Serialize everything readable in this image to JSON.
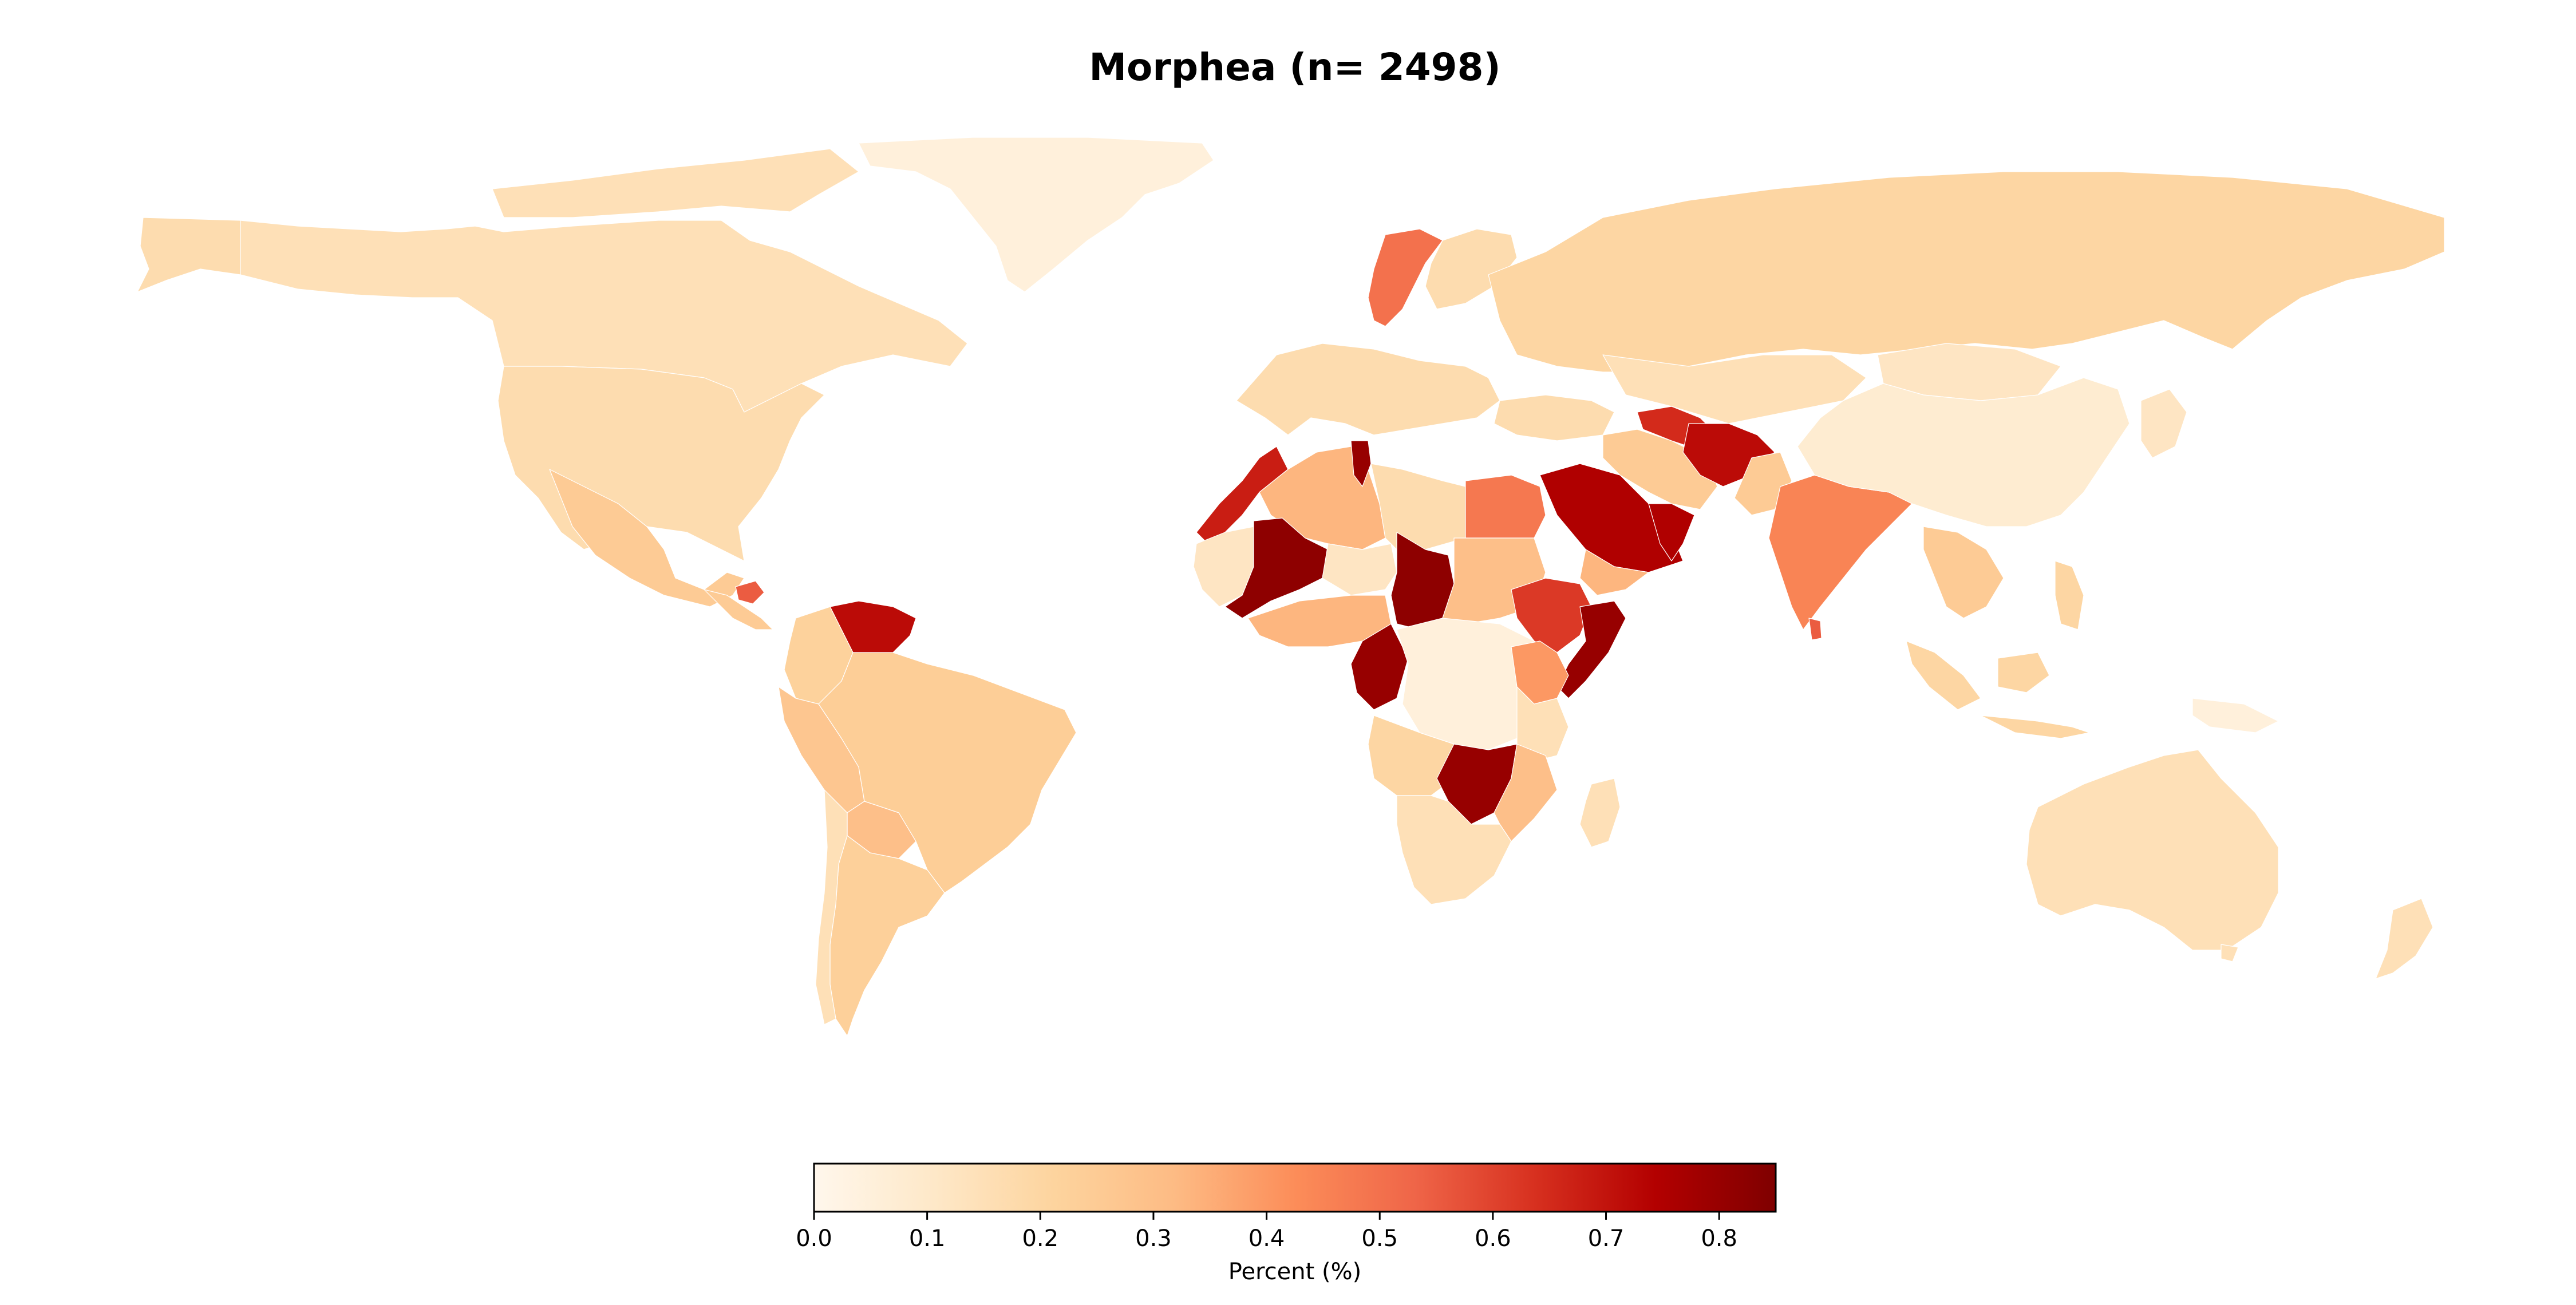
{
  "map": {
    "title": "Morphea (n= 2498)",
    "colorbar": {
      "label": "Percent (%)",
      "min": 0.0,
      "max": 0.85,
      "colormap": "OrRd",
      "ticks": [
        "0.0",
        "0.1",
        "0.2",
        "0.3",
        "0.4",
        "0.5",
        "0.6",
        "0.7",
        "0.8"
      ],
      "colors": [
        "#fff7ec",
        "#fee8c8",
        "#fdd49e",
        "#fdbb84",
        "#fc8d59",
        "#ef6548",
        "#d7301f",
        "#b30000",
        "#7f0000"
      ]
    }
  },
  "chart_data": {
    "type": "choropleth",
    "title": "Morphea (n= 2498)",
    "value_label": "Percent (%)",
    "range": [
      0.0,
      0.85
    ],
    "regions": [
      {
        "name": "Canada",
        "value": 0.15
      },
      {
        "name": "United States",
        "value": 0.17
      },
      {
        "name": "Greenland",
        "value": 0.05
      },
      {
        "name": "Mexico",
        "value": 0.25
      },
      {
        "name": "Honduras",
        "value": 0.55
      },
      {
        "name": "Venezuela",
        "value": 0.72
      },
      {
        "name": "Colombia",
        "value": 0.22
      },
      {
        "name": "Peru",
        "value": 0.27
      },
      {
        "name": "Brazil",
        "value": 0.24
      },
      {
        "name": "Bolivia",
        "value": 0.3
      },
      {
        "name": "Argentina",
        "value": 0.23
      },
      {
        "name": "Chile",
        "value": 0.15
      },
      {
        "name": "Russia",
        "value": 0.2
      },
      {
        "name": "Sweden",
        "value": 0.5
      },
      {
        "name": "Morocco",
        "value": 0.68
      },
      {
        "name": "Algeria",
        "value": 0.33
      },
      {
        "name": "Tunisia",
        "value": 0.8
      },
      {
        "name": "Mali",
        "value": 0.82
      },
      {
        "name": "Niger",
        "value": 0.12
      },
      {
        "name": "Chad",
        "value": 0.82
      },
      {
        "name": "Egypt",
        "value": 0.48
      },
      {
        "name": "Sudan",
        "value": 0.3
      },
      {
        "name": "Ethiopia",
        "value": 0.62
      },
      {
        "name": "Somalia",
        "value": 0.8
      },
      {
        "name": "Nigeria",
        "value": 0.33
      },
      {
        "name": "Cameroon",
        "value": 0.8
      },
      {
        "name": "Congo (DRC)",
        "value": 0.05
      },
      {
        "name": "Kenya",
        "value": 0.4
      },
      {
        "name": "Tanzania",
        "value": 0.15
      },
      {
        "name": "Angola",
        "value": 0.2
      },
      {
        "name": "Zambia",
        "value": 0.8
      },
      {
        "name": "Mozambique",
        "value": 0.3
      },
      {
        "name": "South Africa",
        "value": 0.15
      },
      {
        "name": "Madagascar",
        "value": 0.15
      },
      {
        "name": "Saudi Arabia",
        "value": 0.75
      },
      {
        "name": "Iran",
        "value": 0.25
      },
      {
        "name": "Turkmenistan",
        "value": 0.65
      },
      {
        "name": "Afghanistan",
        "value": 0.72
      },
      {
        "name": "India",
        "value": 0.45
      },
      {
        "name": "Sri Lanka",
        "value": 0.55
      },
      {
        "name": "China",
        "value": 0.08
      },
      {
        "name": "Kazakhstan",
        "value": 0.15
      },
      {
        "name": "Mongolia",
        "value": 0.12
      },
      {
        "name": "Thailand",
        "value": 0.25
      },
      {
        "name": "Indonesia",
        "value": 0.2
      },
      {
        "name": "Australia",
        "value": 0.15
      },
      {
        "name": "New Zealand",
        "value": 0.15
      },
      {
        "name": "Papua New Guinea",
        "value": 0.05
      }
    ]
  }
}
